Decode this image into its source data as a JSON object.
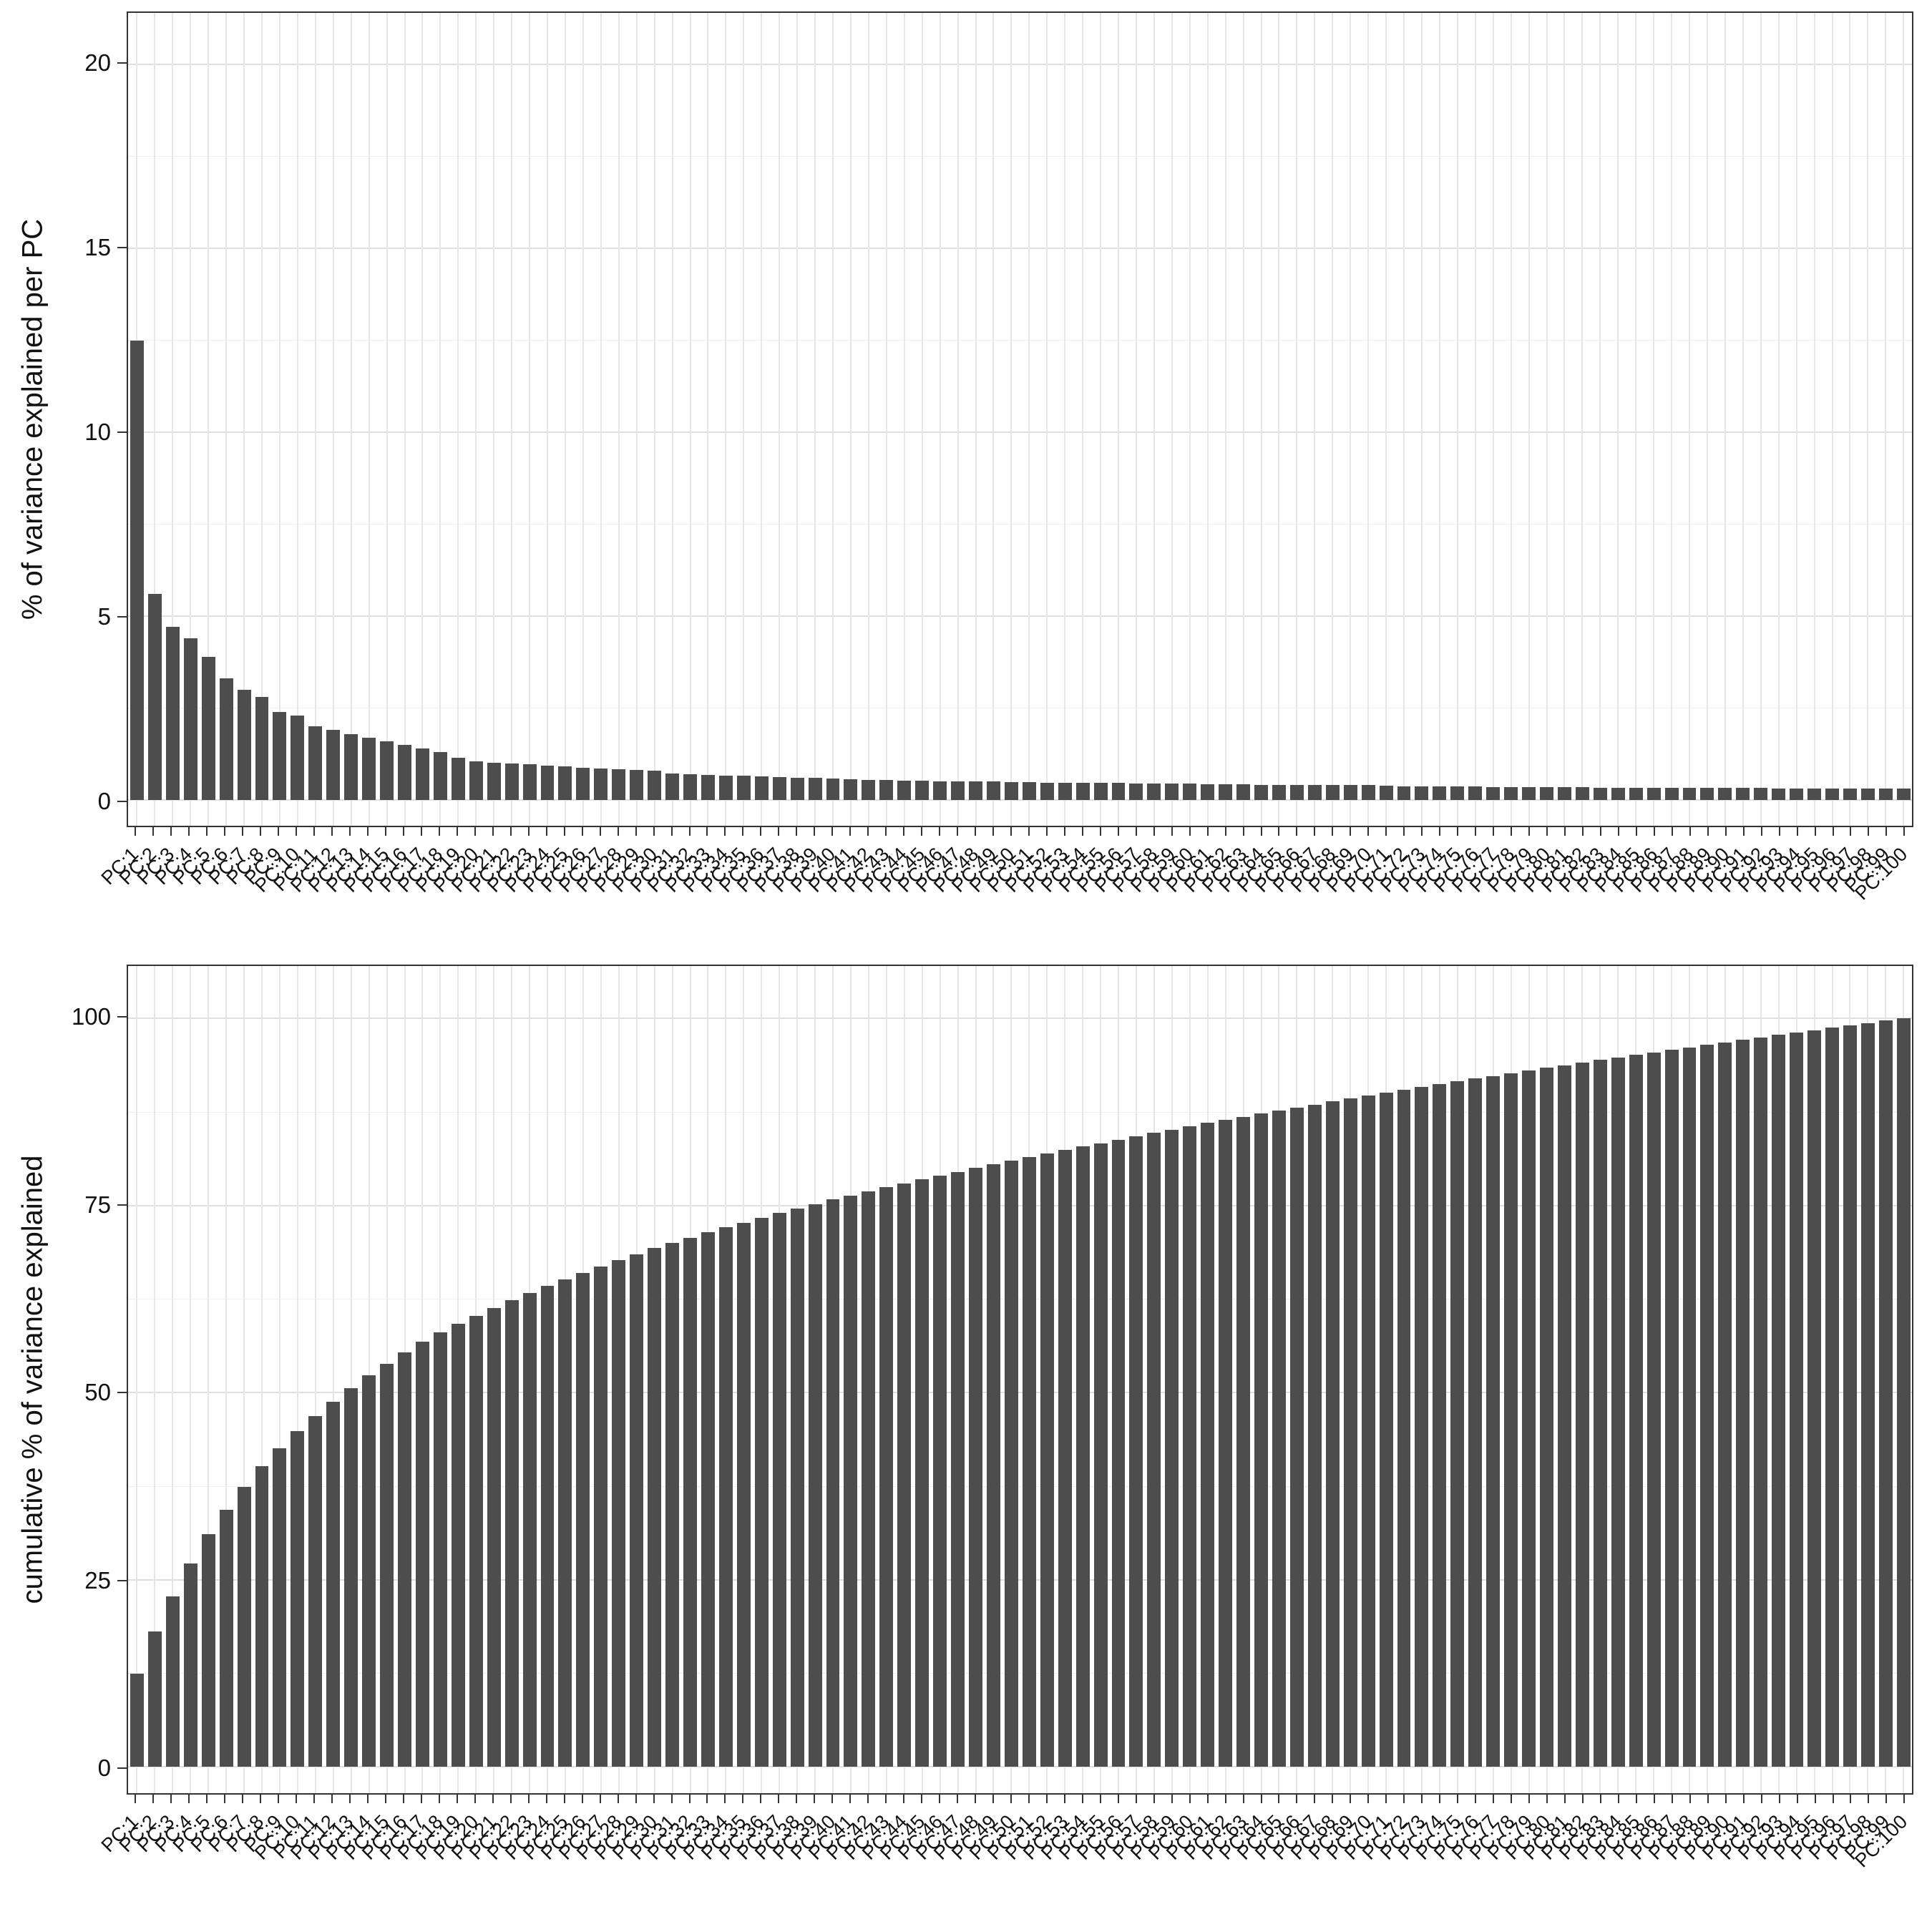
{
  "figure": {
    "background": "#ffffff",
    "bar_color": "#4d4d4d",
    "grid_major_color": "#e0e0e0",
    "grid_minor_color": "#efefef",
    "panel_border_color": "#333333",
    "axis_text_color": "#111111"
  },
  "chart_data": [
    {
      "type": "bar",
      "title": "",
      "xlabel": "",
      "ylabel": "% of variance explained per PC",
      "ylim": [
        0,
        20
      ],
      "yticks": [
        0,
        5,
        10,
        15,
        20
      ],
      "yticks_minor": [
        2.5,
        7.5,
        12.5,
        17.5
      ],
      "grid": true,
      "legend": false,
      "categories": [
        "PC:1",
        "PC:2",
        "PC:3",
        "PC:4",
        "PC:5",
        "PC:6",
        "PC:7",
        "PC:8",
        "PC:9",
        "PC:10",
        "PC:11",
        "PC:12",
        "PC:13",
        "PC:14",
        "PC:15",
        "PC:16",
        "PC:17",
        "PC:18",
        "PC:19",
        "PC:20",
        "PC:21",
        "PC:22",
        "PC:23",
        "PC:24",
        "PC:25",
        "PC:26",
        "PC:27",
        "PC:28",
        "PC:29",
        "PC:30",
        "PC:31",
        "PC:32",
        "PC:33",
        "PC:34",
        "PC:35",
        "PC:36",
        "PC:37",
        "PC:38",
        "PC:39",
        "PC:40",
        "PC:41",
        "PC:42",
        "PC:43",
        "PC:44",
        "PC:45",
        "PC:46",
        "PC:47",
        "PC:48",
        "PC:49",
        "PC:50",
        "PC:51",
        "PC:52",
        "PC:53",
        "PC:54",
        "PC:55",
        "PC:56",
        "PC:57",
        "PC:58",
        "PC:59",
        "PC:60",
        "PC:61",
        "PC:62",
        "PC:63",
        "PC:64",
        "PC:65",
        "PC:66",
        "PC:67",
        "PC:68",
        "PC:69",
        "PC:70",
        "PC:71",
        "PC:72",
        "PC:73",
        "PC:74",
        "PC:75",
        "PC:76",
        "PC:77",
        "PC:78",
        "PC:79",
        "PC:80",
        "PC:81",
        "PC:82",
        "PC:83",
        "PC:84",
        "PC:85",
        "PC:86",
        "PC:87",
        "PC:88",
        "PC:89",
        "PC:90",
        "PC:91",
        "PC:92",
        "PC:93",
        "PC:94",
        "PC:95",
        "PC:96",
        "PC:97",
        "PC:98",
        "PC:99",
        "PC:100"
      ],
      "values": [
        12.5,
        5.6,
        4.7,
        4.4,
        3.9,
        3.3,
        3.0,
        2.8,
        2.4,
        2.3,
        2.0,
        1.9,
        1.8,
        1.7,
        1.6,
        1.5,
        1.4,
        1.3,
        1.15,
        1.05,
        1.02,
        1.0,
        0.97,
        0.94,
        0.91,
        0.88,
        0.85,
        0.83,
        0.81,
        0.79,
        0.72,
        0.7,
        0.68,
        0.67,
        0.66,
        0.64,
        0.63,
        0.61,
        0.6,
        0.59,
        0.56,
        0.55,
        0.54,
        0.53,
        0.52,
        0.51,
        0.5,
        0.5,
        0.5,
        0.49,
        0.48,
        0.47,
        0.47,
        0.46,
        0.46,
        0.46,
        0.45,
        0.45,
        0.45,
        0.45,
        0.43,
        0.42,
        0.42,
        0.41,
        0.41,
        0.41,
        0.4,
        0.4,
        0.4,
        0.4,
        0.39,
        0.38,
        0.38,
        0.37,
        0.37,
        0.37,
        0.36,
        0.36,
        0.36,
        0.36,
        0.35,
        0.35,
        0.34,
        0.34,
        0.34,
        0.34,
        0.34,
        0.34,
        0.33,
        0.33,
        0.33,
        0.33,
        0.32,
        0.32,
        0.32,
        0.32,
        0.32,
        0.32,
        0.31,
        0.31
      ]
    },
    {
      "type": "bar",
      "title": "",
      "xlabel": "",
      "ylabel": "cumulative % of variance explained",
      "ylim": [
        0,
        100
      ],
      "yticks": [
        0,
        25,
        50,
        75,
        100
      ],
      "yticks_minor": [
        12.5,
        37.5,
        62.5,
        87.5
      ],
      "grid": true,
      "legend": false,
      "categories": [
        "PC:1",
        "PC:2",
        "PC:3",
        "PC:4",
        "PC:5",
        "PC:6",
        "PC:7",
        "PC:8",
        "PC:9",
        "PC:10",
        "PC:11",
        "PC:12",
        "PC:13",
        "PC:14",
        "PC:15",
        "PC:16",
        "PC:17",
        "PC:18",
        "PC:19",
        "PC:20",
        "PC:21",
        "PC:22",
        "PC:23",
        "PC:24",
        "PC:25",
        "PC:26",
        "PC:27",
        "PC:28",
        "PC:29",
        "PC:30",
        "PC:31",
        "PC:32",
        "PC:33",
        "PC:34",
        "PC:35",
        "PC:36",
        "PC:37",
        "PC:38",
        "PC:39",
        "PC:40",
        "PC:41",
        "PC:42",
        "PC:43",
        "PC:44",
        "PC:45",
        "PC:46",
        "PC:47",
        "PC:48",
        "PC:49",
        "PC:50",
        "PC:51",
        "PC:52",
        "PC:53",
        "PC:54",
        "PC:55",
        "PC:56",
        "PC:57",
        "PC:58",
        "PC:59",
        "PC:60",
        "PC:61",
        "PC:62",
        "PC:63",
        "PC:64",
        "PC:65",
        "PC:66",
        "PC:67",
        "PC:68",
        "PC:69",
        "PC:70",
        "PC:71",
        "PC:72",
        "PC:73",
        "PC:74",
        "PC:75",
        "PC:76",
        "PC:77",
        "PC:78",
        "PC:79",
        "PC:80",
        "PC:81",
        "PC:82",
        "PC:83",
        "PC:84",
        "PC:85",
        "PC:86",
        "PC:87",
        "PC:88",
        "PC:89",
        "PC:90",
        "PC:91",
        "PC:92",
        "PC:93",
        "PC:94",
        "PC:95",
        "PC:96",
        "PC:97",
        "PC:98",
        "PC:99",
        "PC:100"
      ],
      "values": [
        12.5,
        18.1,
        22.8,
        27.2,
        31.1,
        34.4,
        37.4,
        40.2,
        42.6,
        44.9,
        46.9,
        48.8,
        50.6,
        52.3,
        53.9,
        55.4,
        56.8,
        58.1,
        59.25,
        60.3,
        61.32,
        62.32,
        63.29,
        64.23,
        65.14,
        66.02,
        66.87,
        67.7,
        68.51,
        69.3,
        70.02,
        70.72,
        71.4,
        72.07,
        72.73,
        73.37,
        74.0,
        74.61,
        75.21,
        75.8,
        76.36,
        76.91,
        77.45,
        77.98,
        78.5,
        79.01,
        79.51,
        80.01,
        80.51,
        81.0,
        81.48,
        81.95,
        82.42,
        82.88,
        83.34,
        83.8,
        84.25,
        84.7,
        85.15,
        85.6,
        86.03,
        86.45,
        86.87,
        87.28,
        87.69,
        88.1,
        88.5,
        88.9,
        89.3,
        89.7,
        90.09,
        90.47,
        90.85,
        91.22,
        91.59,
        91.96,
        92.32,
        92.68,
        93.04,
        93.4,
        93.75,
        94.1,
        94.44,
        94.78,
        95.12,
        95.46,
        95.8,
        96.14,
        96.47,
        96.8,
        97.13,
        97.46,
        97.78,
        98.1,
        98.42,
        98.74,
        99.06,
        99.38,
        99.69,
        100.0
      ]
    }
  ]
}
